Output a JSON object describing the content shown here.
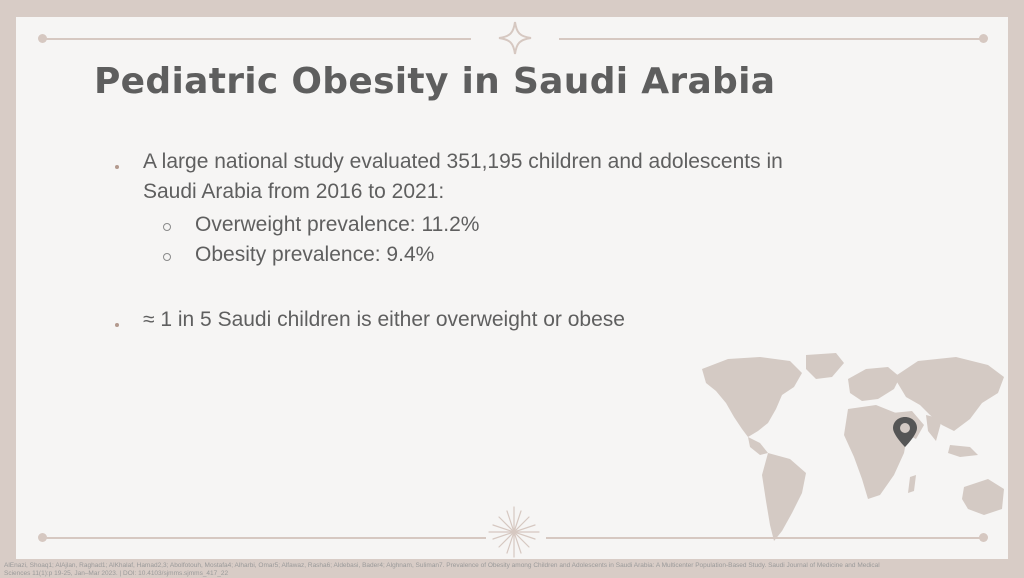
{
  "slide": {
    "title": "Pediatric Obesity in Saudi Arabia",
    "bullets": [
      {
        "line1": "A large national study evaluated 351,195 children and adolescents in",
        "line2": "Saudi Arabia from 2016 to 2021:",
        "sub": [
          "Overweight prevalence: 11.2%",
          "Obesity prevalence: 9.4%"
        ]
      },
      {
        "line1": "≈ 1 in 5 Saudi children is either overweight or obese"
      }
    ],
    "citation_line1": "AlEnazi, Shoaq1; AlAjlan, Raghad1; AlKhalaf, Hamad2,3; Abolfotouh, Mostafa4; Alharbi, Omar5; Alfawaz, Rasha6; Aldebasi, Bader4; Alghnam, Suliman7. Prevalence of Obesity among Children and Adolescents in Saudi Arabia: A Multicenter Population-Based Study. Saudi Journal of Medicine and Medical",
    "citation_line2": "Sciences 11(1):p 19-25, Jan–Mar 2023. | DOI: 10.4103/sjmms.sjmms_417_22"
  },
  "colors": {
    "background": "#d8ccc6",
    "slide": "#f6f5f4",
    "title": "#5e5e5e",
    "text": "#5f5f5f",
    "accent": "#d6c8c1",
    "map": "#d4cac4",
    "pin": "#555555"
  },
  "icons": {
    "top_ornament": "four-point-star-icon",
    "bottom_ornament": "sparkle-burst-icon",
    "map": "world-map-icon",
    "pin": "location-pin-icon"
  }
}
